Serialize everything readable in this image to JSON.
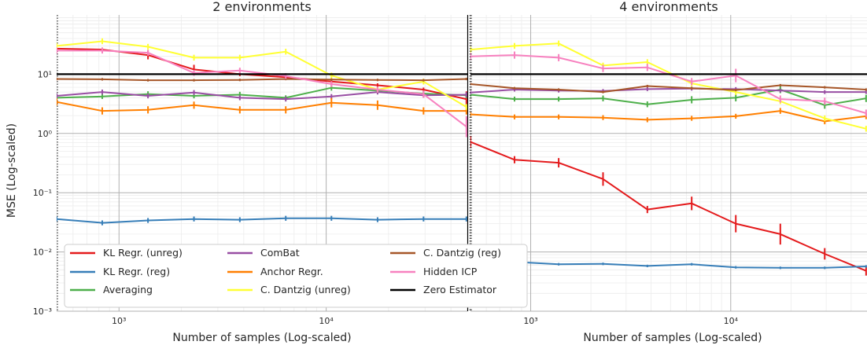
{
  "chart_data": {
    "type": "line",
    "ylabel": "MSE (Log-scaled)",
    "xlabel": "Number of samples (Log-scaled)",
    "x_scale": "log",
    "y_scale": "log",
    "x_tick_values": [
      1000,
      10000
    ],
    "x_tick_labels": [
      "10³",
      "10⁴"
    ],
    "y_tick_values": [
      0.001,
      0.01,
      0.1,
      1,
      10
    ],
    "y_tick_labels": [
      "10⁻³",
      "10⁻²",
      "10⁻¹",
      "10⁰",
      "10¹"
    ],
    "ylim": [
      0.001,
      100
    ],
    "xlim": [
      500,
      48000
    ],
    "grid": true,
    "legend_position": "lower-left",
    "legend": [
      {
        "name": "KL Regr. (unreg)",
        "color": "#e41a1c"
      },
      {
        "name": "KL Regr. (reg)",
        "color": "#377eb8"
      },
      {
        "name": "Averaging",
        "color": "#4daf4a"
      },
      {
        "name": "ComBat",
        "color": "#984ea3"
      },
      {
        "name": "Anchor Regr.",
        "color": "#ff7f00"
      },
      {
        "name": "C. Dantzig (unreg)",
        "color": "#ffff33"
      },
      {
        "name": "C. Dantzig (reg)",
        "color": "#a65628"
      },
      {
        "name": "Hidden ICP",
        "color": "#f781bf"
      },
      {
        "name": "Zero Estimator",
        "color": "#000000"
      }
    ],
    "panels": [
      {
        "title": "2 environments",
        "x": [
          500,
          830,
          1380,
          2300,
          3830,
          6380,
          10600,
          17700,
          29500,
          47500
        ],
        "zero_estimator": 10,
        "series": [
          {
            "name": "KL Regr. (unreg)",
            "color": "#e41a1c",
            "values": [
              27,
              26,
              21,
              12,
              10,
              8.9,
              7.5,
              6.5,
              5.5,
              3.8
            ],
            "errors": [
              1.08,
              1.08,
              1.18,
              1.2,
              1.08,
              1.06,
              1.08,
              1.08,
              1.08,
              1.35
            ]
          },
          {
            "name": "KL Regr. (reg)",
            "color": "#377eb8",
            "values": [
              0.036,
              0.031,
              0.034,
              0.036,
              0.035,
              0.037,
              0.037,
              0.035,
              0.036,
              0.036
            ],
            "errors": [
              1.1,
              1.1,
              1.1,
              1.1,
              1.1,
              1.1,
              1.1,
              1.1,
              1.1,
              1.1
            ]
          },
          {
            "name": "Averaging",
            "color": "#4daf4a",
            "values": [
              4.0,
              4.2,
              4.6,
              4.3,
              4.5,
              4.0,
              5.9,
              5.3,
              4.7,
              4.4
            ],
            "errors": [
              1.1,
              1.1,
              1.12,
              1.1,
              1.12,
              1.1,
              1.12,
              1.12,
              1.12,
              1.12
            ]
          },
          {
            "name": "ComBat",
            "color": "#984ea3",
            "values": [
              4.3,
              5.0,
              4.3,
              4.9,
              4.0,
              3.8,
              4.2,
              5.0,
              4.4,
              4.5
            ],
            "errors": [
              1.1,
              1.1,
              1.1,
              1.1,
              1.1,
              1.1,
              1.1,
              1.1,
              1.1,
              1.1
            ]
          },
          {
            "name": "Anchor Regr.",
            "color": "#ff7f00",
            "values": [
              3.4,
              2.4,
              2.5,
              3.0,
              2.5,
              2.5,
              3.3,
              3.0,
              2.4,
              2.4
            ],
            "errors": [
              1.15,
              1.15,
              1.15,
              1.15,
              1.15,
              1.15,
              1.2,
              1.2,
              1.15,
              1.15
            ]
          },
          {
            "name": "C. Dantzig (unreg)",
            "color": "#ffff33",
            "values": [
              30,
              36,
              29,
              19,
              19,
              24,
              9.5,
              5.5,
              7.5,
              2.8
            ],
            "errors": [
              1.12,
              1.12,
              1.12,
              1.12,
              1.12,
              1.12,
              1.12,
              1.12,
              1.12,
              1.12
            ]
          },
          {
            "name": "C. Dantzig (reg)",
            "color": "#a65628",
            "values": [
              8.3,
              8.2,
              7.9,
              7.9,
              8.0,
              8.3,
              8.1,
              8.0,
              7.9,
              8.3
            ],
            "errors": [
              1.05,
              1.05,
              1.05,
              1.05,
              1.05,
              1.05,
              1.05,
              1.05,
              1.05,
              1.05
            ]
          },
          {
            "name": "Hidden ICP",
            "color": "#f781bf",
            "values": [
              25,
              25,
              23,
              10.5,
              11.5,
              9.3,
              6.8,
              5.5,
              4.6,
              1.3
            ],
            "errors": [
              1.12,
              1.12,
              1.12,
              1.12,
              1.12,
              1.12,
              1.12,
              1.12,
              1.15,
              1.5
            ]
          }
        ]
      },
      {
        "title": "4 environments",
        "x": [
          500,
          830,
          1380,
          2300,
          3830,
          6380,
          10600,
          17700,
          29500,
          47500
        ],
        "zero_estimator": 10,
        "series": [
          {
            "name": "KL Regr. (unreg)",
            "color": "#e41a1c",
            "values": [
              0.72,
              0.36,
              0.32,
              0.17,
              0.052,
              0.066,
              0.03,
              0.02,
              0.0093,
              0.0048
            ],
            "errors": [
              1.25,
              1.15,
              1.2,
              1.3,
              1.15,
              1.3,
              1.4,
              1.5,
              1.25,
              1.2
            ]
          },
          {
            "name": "KL Regr. (reg)",
            "color": "#377eb8",
            "values": [
              0.0072,
              0.0068,
              0.0062,
              0.0063,
              0.0058,
              0.0062,
              0.0055,
              0.0054,
              0.0054,
              0.0057
            ],
            "errors": [
              1.05,
              1.05,
              1.05,
              1.05,
              1.05,
              1.05,
              1.05,
              1.05,
              1.05,
              1.05
            ]
          },
          {
            "name": "Averaging",
            "color": "#4daf4a",
            "values": [
              4.5,
              3.8,
              3.8,
              3.9,
              3.1,
              3.7,
              4.0,
              5.5,
              3.0,
              3.9
            ],
            "errors": [
              1.1,
              1.1,
              1.1,
              1.12,
              1.12,
              1.15,
              1.15,
              1.15,
              1.15,
              1.15
            ]
          },
          {
            "name": "ComBat",
            "color": "#984ea3",
            "values": [
              4.9,
              5.5,
              5.3,
              5.2,
              5.6,
              5.7,
              5.6,
              5.3,
              5.0,
              5.0
            ],
            "errors": [
              1.08,
              1.08,
              1.08,
              1.08,
              1.08,
              1.08,
              1.08,
              1.08,
              1.08,
              1.08
            ]
          },
          {
            "name": "Anchor Regr.",
            "color": "#ff7f00",
            "values": [
              2.1,
              1.9,
              1.9,
              1.85,
              1.7,
              1.8,
              1.95,
              2.4,
              1.6,
              1.95
            ],
            "errors": [
              1.1,
              1.1,
              1.1,
              1.1,
              1.1,
              1.1,
              1.1,
              1.12,
              1.12,
              1.12
            ]
          },
          {
            "name": "C. Dantzig (unreg)",
            "color": "#ffff33",
            "values": [
              26,
              30,
              33,
              14,
              16,
              7.0,
              5.0,
              3.5,
              1.8,
              1.2
            ],
            "errors": [
              1.12,
              1.12,
              1.12,
              1.12,
              1.12,
              1.12,
              1.12,
              1.12,
              1.12,
              1.12
            ]
          },
          {
            "name": "C. Dantzig (reg)",
            "color": "#a65628",
            "values": [
              6.8,
              5.8,
              5.5,
              5.0,
              6.3,
              5.8,
              5.4,
              6.5,
              6.0,
              5.5
            ],
            "errors": [
              1.05,
              1.05,
              1.05,
              1.05,
              1.05,
              1.05,
              1.05,
              1.05,
              1.05,
              1.05
            ]
          },
          {
            "name": "Hidden ICP",
            "color": "#f781bf",
            "values": [
              20,
              21,
              19,
              12.5,
              13,
              7.5,
              9.5,
              3.8,
              3.5,
              2.2
            ],
            "errors": [
              1.15,
              1.15,
              1.15,
              1.15,
              1.15,
              1.15,
              1.3,
              1.15,
              1.15,
              1.15
            ]
          }
        ]
      }
    ]
  }
}
